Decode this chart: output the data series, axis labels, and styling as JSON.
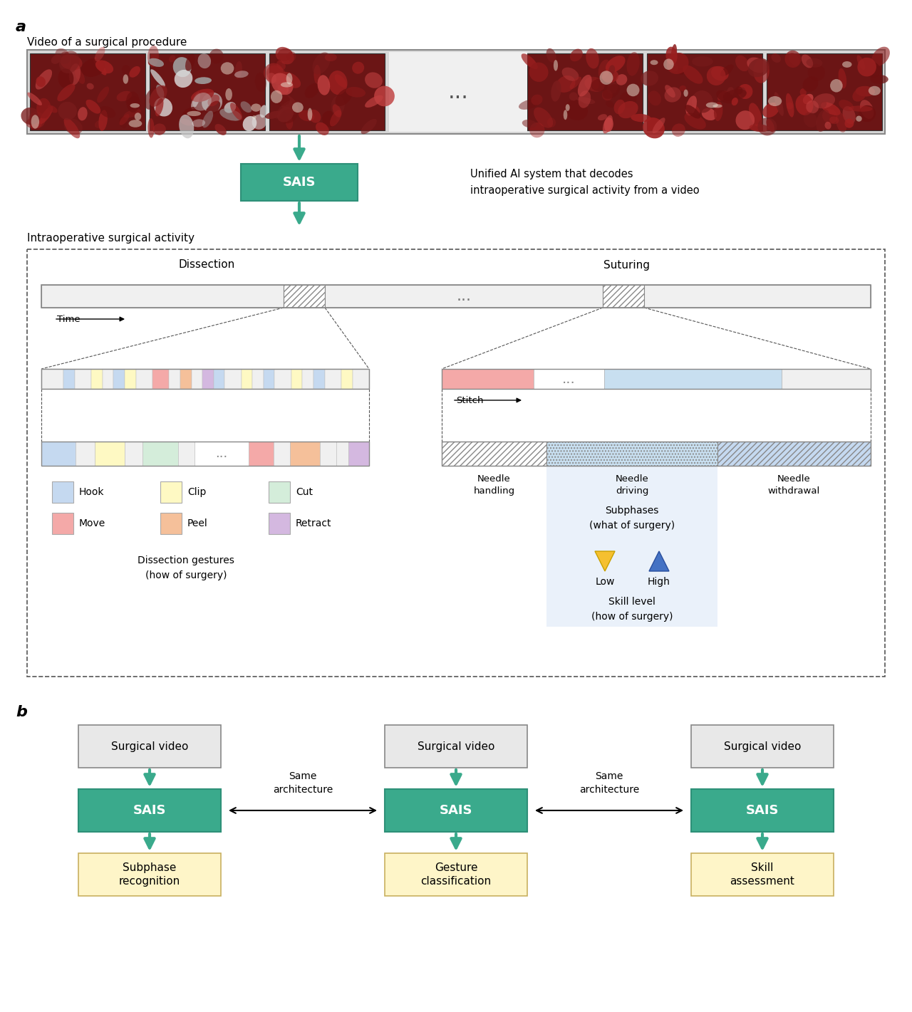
{
  "bg_color": "#ffffff",
  "teal_color": "#3aaa8c",
  "teal_dark": "#2e9078",
  "label_a": "a",
  "label_b": "b",
  "video_label": "Video of a surgical procedure",
  "sais_label": "SAIS",
  "unified_text": "Unified AI system that decodes\nintraoperative surgical activity from a video",
  "intraop_label": "Intraoperative surgical activity",
  "dissection_label": "Dissection",
  "suturing_label": "Suturing",
  "time_label": "Time",
  "stitch_label": "Stitch",
  "gesture_colors": [
    "#c5d9f0",
    "#fef9c3",
    "#d4edda",
    "#f4a9a8",
    "#f5c09a",
    "#d4b8e0"
  ],
  "gesture_names": [
    "Hook",
    "Clip",
    "Cut",
    "Move",
    "Peel",
    "Retract"
  ],
  "subphases_text": "Subphases\n(what of surgery)",
  "skill_level_text": "Skill level\n(how of surgery)",
  "needle_handling_text": "Needle\nhandling",
  "needle_driving_text": "Needle\ndriving",
  "needle_withdrawal_text": "Needle\nwithdrawal",
  "dissection_gestures_text": "Dissection gestures\n(how of surgery)",
  "low_text": "Low",
  "high_text": "High",
  "surgical_video_text": "Surgical video",
  "sais_box_text": "SAIS",
  "subphase_recognition_text": "Subphase\nrecognition",
  "gesture_classification_text": "Gesture\nclassification",
  "skill_assessment_text": "Skill\nassessment",
  "same_architecture_text": "Same\narchitecture",
  "frame_bg_colors": [
    [
      "#7a1c1c",
      "#9b2020",
      "#6b1010",
      "#8b1a1a",
      "#c04040",
      "#a02020"
    ],
    [
      "#8b2020",
      "#c8c8c8",
      "#e0e0e0",
      "#a0a0a0",
      "#6b1010",
      "#9b2020"
    ],
    [
      "#9b2020",
      "#8b1a1a",
      "#c04040",
      "#7a1c1c",
      "#a02020",
      "#6b1010"
    ],
    [
      "#8b1a1a",
      "#9b2020",
      "#7a1c1c",
      "#c04040",
      "#6b1010",
      "#a02020"
    ],
    [
      "#c04040",
      "#8b1a1a",
      "#9b2020",
      "#7a1c1c",
      "#a02020",
      "#6b1010"
    ],
    [
      "#9b2020",
      "#c04040",
      "#8b1a1a",
      "#7a1c1c",
      "#6b1010",
      "#a02020"
    ]
  ]
}
